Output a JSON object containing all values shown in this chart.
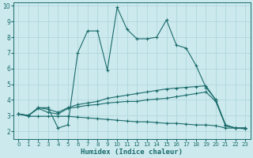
{
  "xlabel": "Humidex (Indice chaleur)",
  "background_color": "#cce9ed",
  "grid_color": "#aad4d8",
  "line_color": "#1a6b6b",
  "xlim": [
    -0.5,
    23.5
  ],
  "ylim": [
    1.5,
    10.2
  ],
  "xticks": [
    0,
    1,
    2,
    3,
    4,
    5,
    6,
    7,
    8,
    9,
    10,
    11,
    12,
    13,
    14,
    15,
    16,
    17,
    18,
    19,
    20,
    21,
    22,
    23
  ],
  "yticks": [
    2,
    3,
    4,
    5,
    6,
    7,
    8,
    9,
    10
  ],
  "series": [
    {
      "x": [
        0,
        1,
        2,
        3,
        4,
        5,
        6,
        7,
        8,
        9,
        10,
        11,
        12,
        13,
        14,
        15,
        16,
        17,
        18,
        19,
        20,
        21,
        22,
        23
      ],
      "y": [
        3.1,
        3.0,
        3.5,
        3.5,
        2.2,
        2.4,
        7.0,
        8.4,
        8.4,
        5.9,
        9.9,
        8.5,
        7.9,
        7.9,
        8.0,
        9.1,
        7.5,
        7.3,
        6.2,
        4.8,
        4.0,
        2.4,
        2.2,
        2.2
      ]
    },
    {
      "x": [
        0,
        1,
        2,
        3,
        4,
        5,
        6,
        7,
        8,
        9,
        10,
        11,
        12,
        13,
        14,
        15,
        16,
        17,
        18,
        19,
        20,
        21,
        22,
        23
      ],
      "y": [
        3.1,
        3.0,
        3.5,
        3.4,
        3.2,
        3.5,
        3.7,
        3.8,
        3.9,
        4.1,
        4.2,
        4.3,
        4.4,
        4.5,
        4.6,
        4.7,
        4.75,
        4.8,
        4.85,
        4.9,
        4.0,
        2.35,
        2.2,
        2.2
      ]
    },
    {
      "x": [
        0,
        1,
        2,
        3,
        4,
        5,
        6,
        7,
        8,
        9,
        10,
        11,
        12,
        13,
        14,
        15,
        16,
        17,
        18,
        19,
        20,
        21,
        22,
        23
      ],
      "y": [
        3.1,
        3.0,
        3.45,
        3.2,
        3.1,
        3.45,
        3.55,
        3.65,
        3.7,
        3.8,
        3.85,
        3.9,
        3.9,
        4.0,
        4.05,
        4.1,
        4.2,
        4.3,
        4.4,
        4.5,
        3.9,
        2.35,
        2.2,
        2.2
      ]
    },
    {
      "x": [
        0,
        1,
        2,
        3,
        4,
        5,
        6,
        7,
        8,
        9,
        10,
        11,
        12,
        13,
        14,
        15,
        16,
        17,
        18,
        19,
        20,
        21,
        22,
        23
      ],
      "y": [
        3.1,
        2.95,
        2.95,
        2.95,
        2.95,
        2.95,
        2.9,
        2.85,
        2.8,
        2.75,
        2.7,
        2.65,
        2.6,
        2.6,
        2.55,
        2.5,
        2.5,
        2.45,
        2.4,
        2.4,
        2.35,
        2.2,
        2.2,
        2.15
      ]
    }
  ]
}
